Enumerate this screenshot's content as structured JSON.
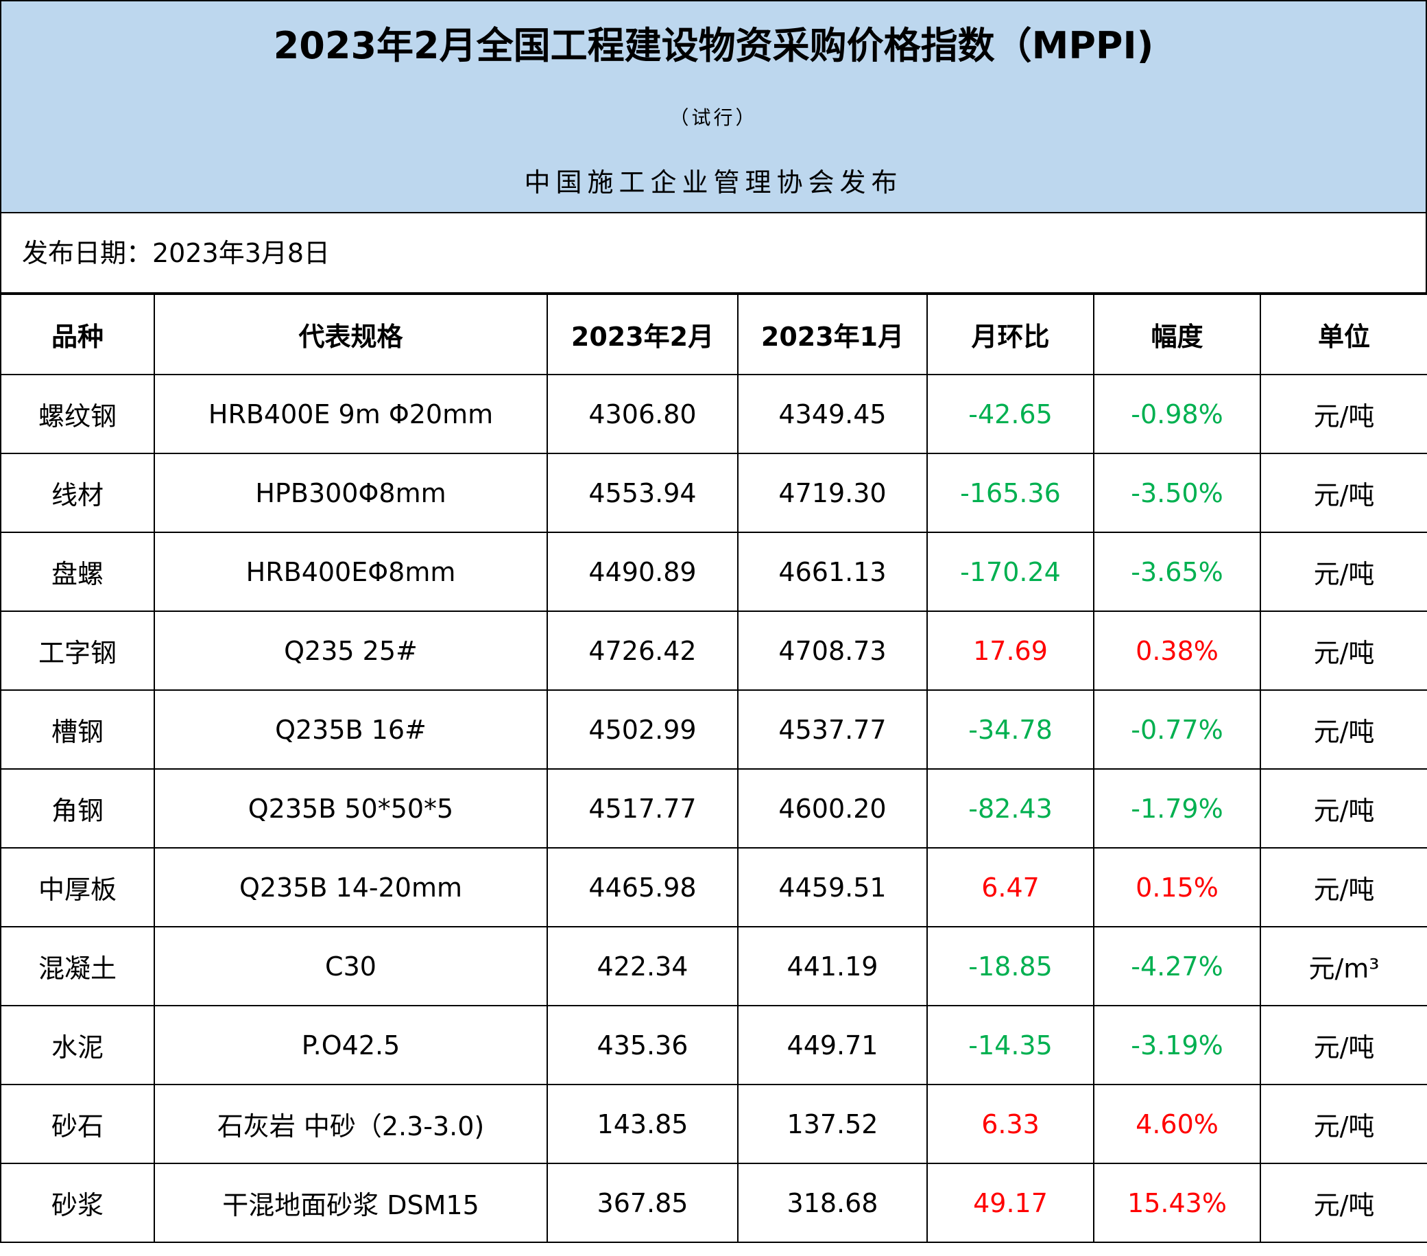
{
  "header": {
    "title": "2023年2月全国工程建设物资采购价格指数（MPPI)",
    "subtitle": "（试行）",
    "publisher": "中国施工企业管理协会发布"
  },
  "release_date": "发布日期：2023年3月8日",
  "table": {
    "columns": [
      "品种",
      "代表规格",
      "2023年2月",
      "2023年1月",
      "月环比",
      "幅度",
      "单位"
    ],
    "rows": [
      {
        "item": "螺纹钢",
        "spec": "HRB400E 9m Φ20mm",
        "feb": "4306.80",
        "jan": "4349.45",
        "mom": "-42.65",
        "pct": "-0.98%",
        "unit": "元/吨",
        "trend": "neg"
      },
      {
        "item": "线材",
        "spec": "HPB300Φ8mm",
        "feb": "4553.94",
        "jan": "4719.30",
        "mom": "-165.36",
        "pct": "-3.50%",
        "unit": "元/吨",
        "trend": "neg"
      },
      {
        "item": "盘螺",
        "spec": "HRB400EΦ8mm",
        "feb": "4490.89",
        "jan": "4661.13",
        "mom": "-170.24",
        "pct": "-3.65%",
        "unit": "元/吨",
        "trend": "neg"
      },
      {
        "item": "工字钢",
        "spec": "Q235 25#",
        "feb": "4726.42",
        "jan": "4708.73",
        "mom": "17.69",
        "pct": "0.38%",
        "unit": "元/吨",
        "trend": "pos"
      },
      {
        "item": "槽钢",
        "spec": "Q235B 16#",
        "feb": "4502.99",
        "jan": "4537.77",
        "mom": "-34.78",
        "pct": "-0.77%",
        "unit": "元/吨",
        "trend": "neg"
      },
      {
        "item": "角钢",
        "spec": "Q235B 50*50*5",
        "feb": "4517.77",
        "jan": "4600.20",
        "mom": "-82.43",
        "pct": "-1.79%",
        "unit": "元/吨",
        "trend": "neg"
      },
      {
        "item": "中厚板",
        "spec": "Q235B 14-20mm",
        "feb": "4465.98",
        "jan": "4459.51",
        "mom": "6.47",
        "pct": "0.15%",
        "unit": "元/吨",
        "trend": "pos"
      },
      {
        "item": "混凝土",
        "spec": "C30",
        "feb": "422.34",
        "jan": "441.19",
        "mom": "-18.85",
        "pct": "-4.27%",
        "unit": "元/m³",
        "trend": "neg"
      },
      {
        "item": "水泥",
        "spec": "P.O42.5",
        "feb": "435.36",
        "jan": "449.71",
        "mom": "-14.35",
        "pct": "-3.19%",
        "unit": "元/吨",
        "trend": "neg"
      },
      {
        "item": "砂石",
        "spec": "石灰岩 中砂（2.3-3.0)",
        "feb": "143.85",
        "jan": "137.52",
        "mom": "6.33",
        "pct": "4.60%",
        "unit": "元/吨",
        "trend": "pos"
      },
      {
        "item": "砂浆",
        "spec": "干混地面砂浆 DSM15",
        "feb": "367.85",
        "jan": "318.68",
        "mom": "49.17",
        "pct": "15.43%",
        "unit": "元/吨",
        "trend": "pos"
      }
    ]
  },
  "colors": {
    "banner_bg": "#bdd7ee",
    "negative": "#00b050",
    "positive": "#ff0000"
  }
}
